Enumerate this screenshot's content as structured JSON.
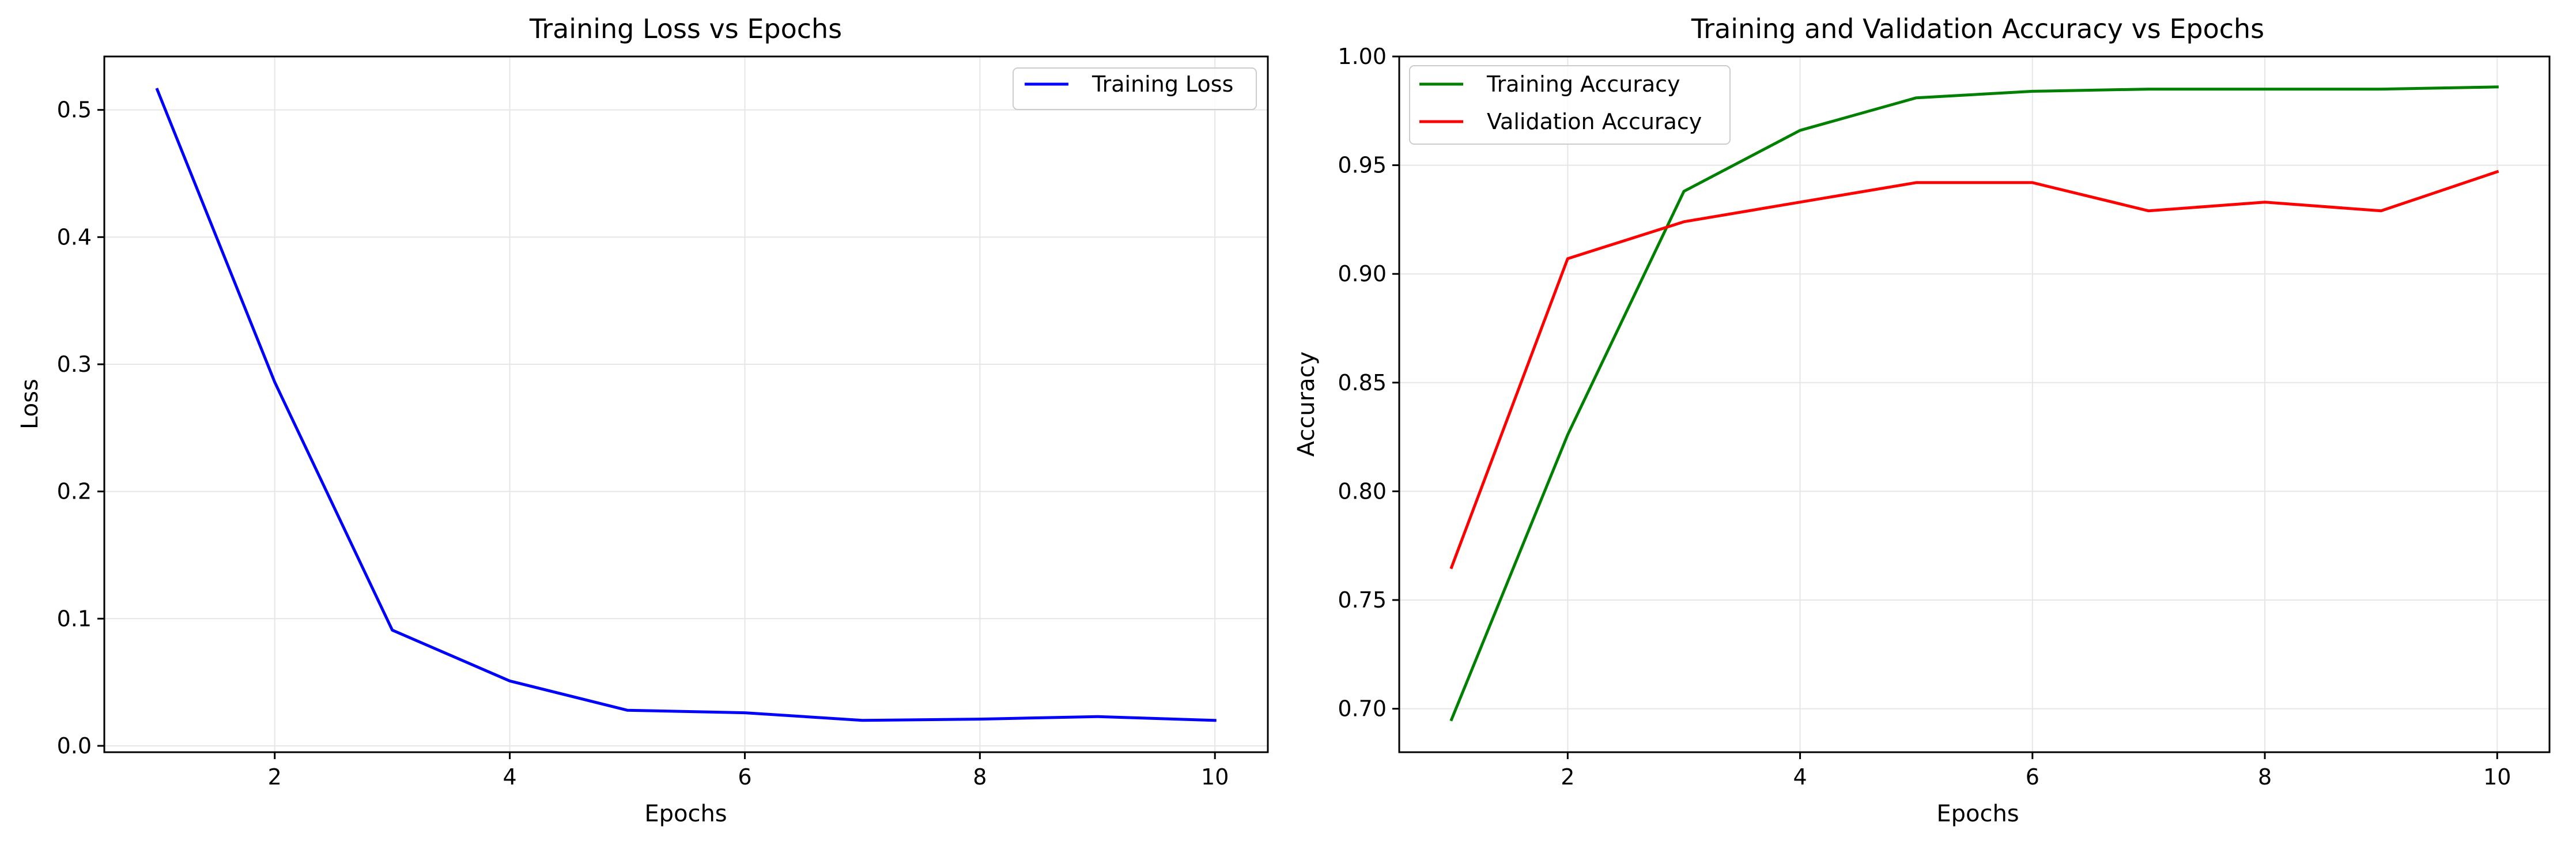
{
  "chart_data": [
    {
      "id": "loss",
      "type": "line",
      "title": "Training Loss vs Epochs",
      "xlabel": "Epochs",
      "ylabel": "Loss",
      "xlim": [
        0.55,
        10.45
      ],
      "ylim": [
        -0.005,
        0.542
      ],
      "xticks": [
        2,
        4,
        6,
        8,
        10
      ],
      "yticks": [
        0.0,
        0.1,
        0.2,
        0.3,
        0.4,
        0.5
      ],
      "ytick_labels": [
        "0.0",
        "0.1",
        "0.2",
        "0.3",
        "0.4",
        "0.5"
      ],
      "grid": true,
      "legend_position": "top-right",
      "x": [
        1,
        2,
        3,
        4,
        5,
        6,
        7,
        8,
        9,
        10
      ],
      "series": [
        {
          "name": "Training Loss",
          "color": "#0000ff",
          "values": [
            0.516,
            0.286,
            0.091,
            0.051,
            0.028,
            0.026,
            0.02,
            0.021,
            0.023,
            0.02
          ]
        }
      ]
    },
    {
      "id": "acc",
      "type": "line",
      "title": "Training and Validation Accuracy vs Epochs",
      "xlabel": "Epochs",
      "ylabel": "Accuracy",
      "xlim": [
        0.55,
        10.45
      ],
      "ylim": [
        0.68,
        1.0
      ],
      "xticks": [
        2,
        4,
        6,
        8,
        10
      ],
      "yticks": [
        0.7,
        0.75,
        0.8,
        0.85,
        0.9,
        0.95,
        1.0
      ],
      "ytick_labels": [
        "0.70",
        "0.75",
        "0.80",
        "0.85",
        "0.90",
        "0.95",
        "1.00"
      ],
      "grid": true,
      "legend_position": "top-left",
      "x": [
        1,
        2,
        3,
        4,
        5,
        6,
        7,
        8,
        9,
        10
      ],
      "series": [
        {
          "name": "Training Accuracy",
          "color": "#008000",
          "values": [
            0.695,
            0.826,
            0.938,
            0.966,
            0.981,
            0.984,
            0.985,
            0.985,
            0.985,
            0.986
          ]
        },
        {
          "name": "Validation Accuracy",
          "color": "#ff0000",
          "values": [
            0.765,
            0.907,
            0.924,
            0.933,
            0.942,
            0.942,
            0.929,
            0.933,
            0.929,
            0.947
          ]
        }
      ]
    }
  ]
}
